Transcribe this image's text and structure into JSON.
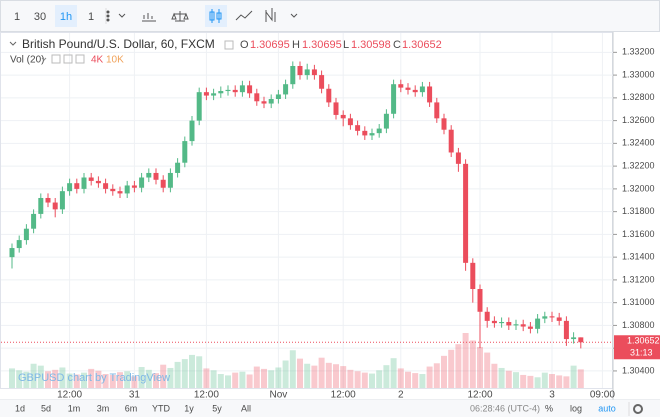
{
  "toolbar": [
    "1",
    "30",
    "1h",
    "1"
  ],
  "legend": {
    "title": "British Pound/U.S. Dollar, 60, FXCM",
    "o_label": "O",
    "h_label": "H",
    "l_label": "L",
    "c_label": "C"
  },
  "volume_legend": {
    "name": "Vol (20)",
    "value": "4K",
    "ma": "10K"
  },
  "watermark": "GBPUSD chart by TradingView",
  "countdown": "31:13",
  "bottom_bar": {
    "ranges": [
      "1d",
      "5d",
      "1m",
      "3m",
      "6m",
      "YTD",
      "1y",
      "5y",
      "All"
    ],
    "clock": "06:28:46 (UTC-4)",
    "percent": "%",
    "log": "log",
    "auto": "auto"
  },
  "chart_data": {
    "type": "candlestick",
    "up_color": "#53b987",
    "down_color": "#eb4d5c",
    "grid": true,
    "ylim": [
      1.3025,
      1.3337
    ],
    "yticks": [
      {
        "value": 1.332,
        "label": "1.33200"
      },
      {
        "value": 1.33,
        "label": "1.33000"
      },
      {
        "value": 1.328,
        "label": "1.32800"
      },
      {
        "value": 1.326,
        "label": "1.32600"
      },
      {
        "value": 1.324,
        "label": "1.32400"
      },
      {
        "value": 1.322,
        "label": "1.32200"
      },
      {
        "value": 1.32,
        "label": "1.32000"
      },
      {
        "value": 1.318,
        "label": "1.31800"
      },
      {
        "value": 1.316,
        "label": "1.31600"
      },
      {
        "value": 1.314,
        "label": "1.31400"
      },
      {
        "value": 1.312,
        "label": "1.31200"
      },
      {
        "value": 1.31,
        "label": "1.31000"
      },
      {
        "value": 1.308,
        "label": "1.30800"
      },
      {
        "value": 1.306,
        "label": "1.30600"
      },
      {
        "value": 1.304,
        "label": "1.30400"
      }
    ],
    "xticks": [
      {
        "value": 8,
        "label": "12:00"
      },
      {
        "value": 17,
        "label": "31"
      },
      {
        "value": 27,
        "label": "12:00"
      },
      {
        "value": 37,
        "label": "Nov"
      },
      {
        "value": 46,
        "label": "12:00"
      },
      {
        "value": 54,
        "label": "2"
      },
      {
        "value": 65,
        "label": "12:00"
      },
      {
        "value": 75,
        "label": "3"
      },
      {
        "value": 82,
        "label": "09:00"
      }
    ],
    "open": [
      1.314,
      1.3148,
      1.3155,
      1.3165,
      1.3178,
      1.3192,
      1.3188,
      1.3182,
      1.3198,
      1.3205,
      1.32,
      1.321,
      1.3207,
      1.3205,
      1.32,
      1.3198,
      1.3196,
      1.3203,
      1.3201,
      1.321,
      1.3214,
      1.3208,
      1.3201,
      1.3214,
      1.3223,
      1.3242,
      1.326,
      1.3285,
      1.3282,
      1.3284,
      1.3286,
      1.3287,
      1.3285,
      1.3291,
      1.3284,
      1.3277,
      1.3275,
      1.3279,
      1.3283,
      1.3292,
      1.3308,
      1.33,
      1.3305,
      1.33,
      1.3288,
      1.3276,
      1.3265,
      1.3262,
      1.3256,
      1.3251,
      1.3247,
      1.3249,
      1.3253,
      1.3266,
      1.3292,
      1.3289,
      1.3287,
      1.3285,
      1.329,
      1.3276,
      1.3262,
      1.3252,
      1.3232,
      1.3222,
      1.3135,
      1.3112,
      1.3092,
      1.3084,
      1.3082,
      1.3083,
      1.308,
      1.3081,
      1.3079,
      1.3077,
      1.3086,
      1.3088,
      1.3087,
      1.3084,
      1.3068,
      1.30695
    ],
    "high": [
      1.3152,
      1.3159,
      1.3169,
      1.3182,
      1.3196,
      1.3196,
      1.3192,
      1.3202,
      1.3209,
      1.3209,
      1.3214,
      1.3214,
      1.3211,
      1.3209,
      1.3204,
      1.3202,
      1.3207,
      1.3207,
      1.3214,
      1.3218,
      1.3218,
      1.3212,
      1.3218,
      1.3227,
      1.3246,
      1.3264,
      1.3289,
      1.3289,
      1.3288,
      1.329,
      1.3291,
      1.3291,
      1.3295,
      1.3295,
      1.3288,
      1.3281,
      1.3283,
      1.3287,
      1.3296,
      1.3312,
      1.3312,
      1.331,
      1.3309,
      1.3304,
      1.3292,
      1.328,
      1.3269,
      1.3266,
      1.326,
      1.3255,
      1.3253,
      1.3257,
      1.327,
      1.3296,
      1.3296,
      1.3293,
      1.3291,
      1.3294,
      1.3294,
      1.328,
      1.3266,
      1.3256,
      1.3236,
      1.3226,
      1.3139,
      1.3116,
      1.3096,
      1.3088,
      1.3087,
      1.3087,
      1.3085,
      1.3085,
      1.3083,
      1.309,
      1.3092,
      1.3092,
      1.3091,
      1.3088,
      1.3074,
      1.30695
    ],
    "low": [
      1.313,
      1.3144,
      1.3151,
      1.3161,
      1.3174,
      1.3184,
      1.3175,
      1.3178,
      1.3194,
      1.3196,
      1.3196,
      1.3203,
      1.3201,
      1.3196,
      1.3194,
      1.3192,
      1.3192,
      1.3197,
      1.3197,
      1.3206,
      1.3204,
      1.3197,
      1.3197,
      1.321,
      1.3219,
      1.3238,
      1.3256,
      1.3278,
      1.3278,
      1.328,
      1.3282,
      1.3281,
      1.3281,
      1.328,
      1.3273,
      1.3271,
      1.3271,
      1.3275,
      1.3279,
      1.3288,
      1.3296,
      1.3296,
      1.3296,
      1.3284,
      1.3272,
      1.3261,
      1.3255,
      1.3252,
      1.3247,
      1.3243,
      1.3243,
      1.3245,
      1.3249,
      1.3262,
      1.3285,
      1.3283,
      1.3281,
      1.3281,
      1.3272,
      1.3258,
      1.3248,
      1.3228,
      1.3215,
      1.3128,
      1.31,
      1.306,
      1.3078,
      1.3078,
      1.3078,
      1.3076,
      1.3076,
      1.3075,
      1.3073,
      1.3073,
      1.3082,
      1.3083,
      1.308,
      1.3062,
      1.3064,
      1.30598
    ],
    "close": [
      1.3148,
      1.3155,
      1.3165,
      1.3178,
      1.3192,
      1.3188,
      1.3182,
      1.3198,
      1.3205,
      1.32,
      1.321,
      1.3207,
      1.3205,
      1.32,
      1.3198,
      1.3196,
      1.3203,
      1.3201,
      1.321,
      1.3214,
      1.3208,
      1.3201,
      1.3214,
      1.3223,
      1.3242,
      1.326,
      1.3285,
      1.3282,
      1.3284,
      1.3286,
      1.3287,
      1.3285,
      1.3291,
      1.3284,
      1.3277,
      1.3275,
      1.3279,
      1.3283,
      1.3292,
      1.3308,
      1.33,
      1.3305,
      1.33,
      1.3288,
      1.3276,
      1.3265,
      1.3262,
      1.3256,
      1.3251,
      1.3247,
      1.3249,
      1.3253,
      1.3266,
      1.3292,
      1.3289,
      1.3287,
      1.3285,
      1.329,
      1.3276,
      1.3262,
      1.3252,
      1.3232,
      1.3222,
      1.3135,
      1.3112,
      1.3092,
      1.3084,
      1.3082,
      1.3083,
      1.308,
      1.3081,
      1.3079,
      1.3077,
      1.3086,
      1.3088,
      1.3087,
      1.3084,
      1.3068,
      1.30695,
      1.30652
    ],
    "volume": [
      4200,
      3800,
      3500,
      5200,
      4800,
      3600,
      3900,
      4400,
      3100,
      2900,
      3300,
      4100,
      3700,
      3000,
      2800,
      3400,
      3600,
      2500,
      4500,
      3900,
      3200,
      5000,
      4300,
      5600,
      6200,
      7100,
      6800,
      4200,
      3800,
      3000,
      2700,
      3300,
      3500,
      2900,
      4600,
      4100,
      3800,
      4400,
      5900,
      8100,
      6300,
      5200,
      4800,
      6500,
      5400,
      5100,
      4700,
      3900,
      3600,
      3300,
      3100,
      3800,
      4900,
      6400,
      4200,
      3500,
      3200,
      3000,
      4600,
      5300,
      6900,
      8200,
      9400,
      11800,
      10200,
      8800,
      7600,
      5200,
      4300,
      3700,
      3400,
      2800,
      2600,
      2300,
      3300,
      3000,
      2700,
      2500,
      4800,
      4000
    ]
  }
}
